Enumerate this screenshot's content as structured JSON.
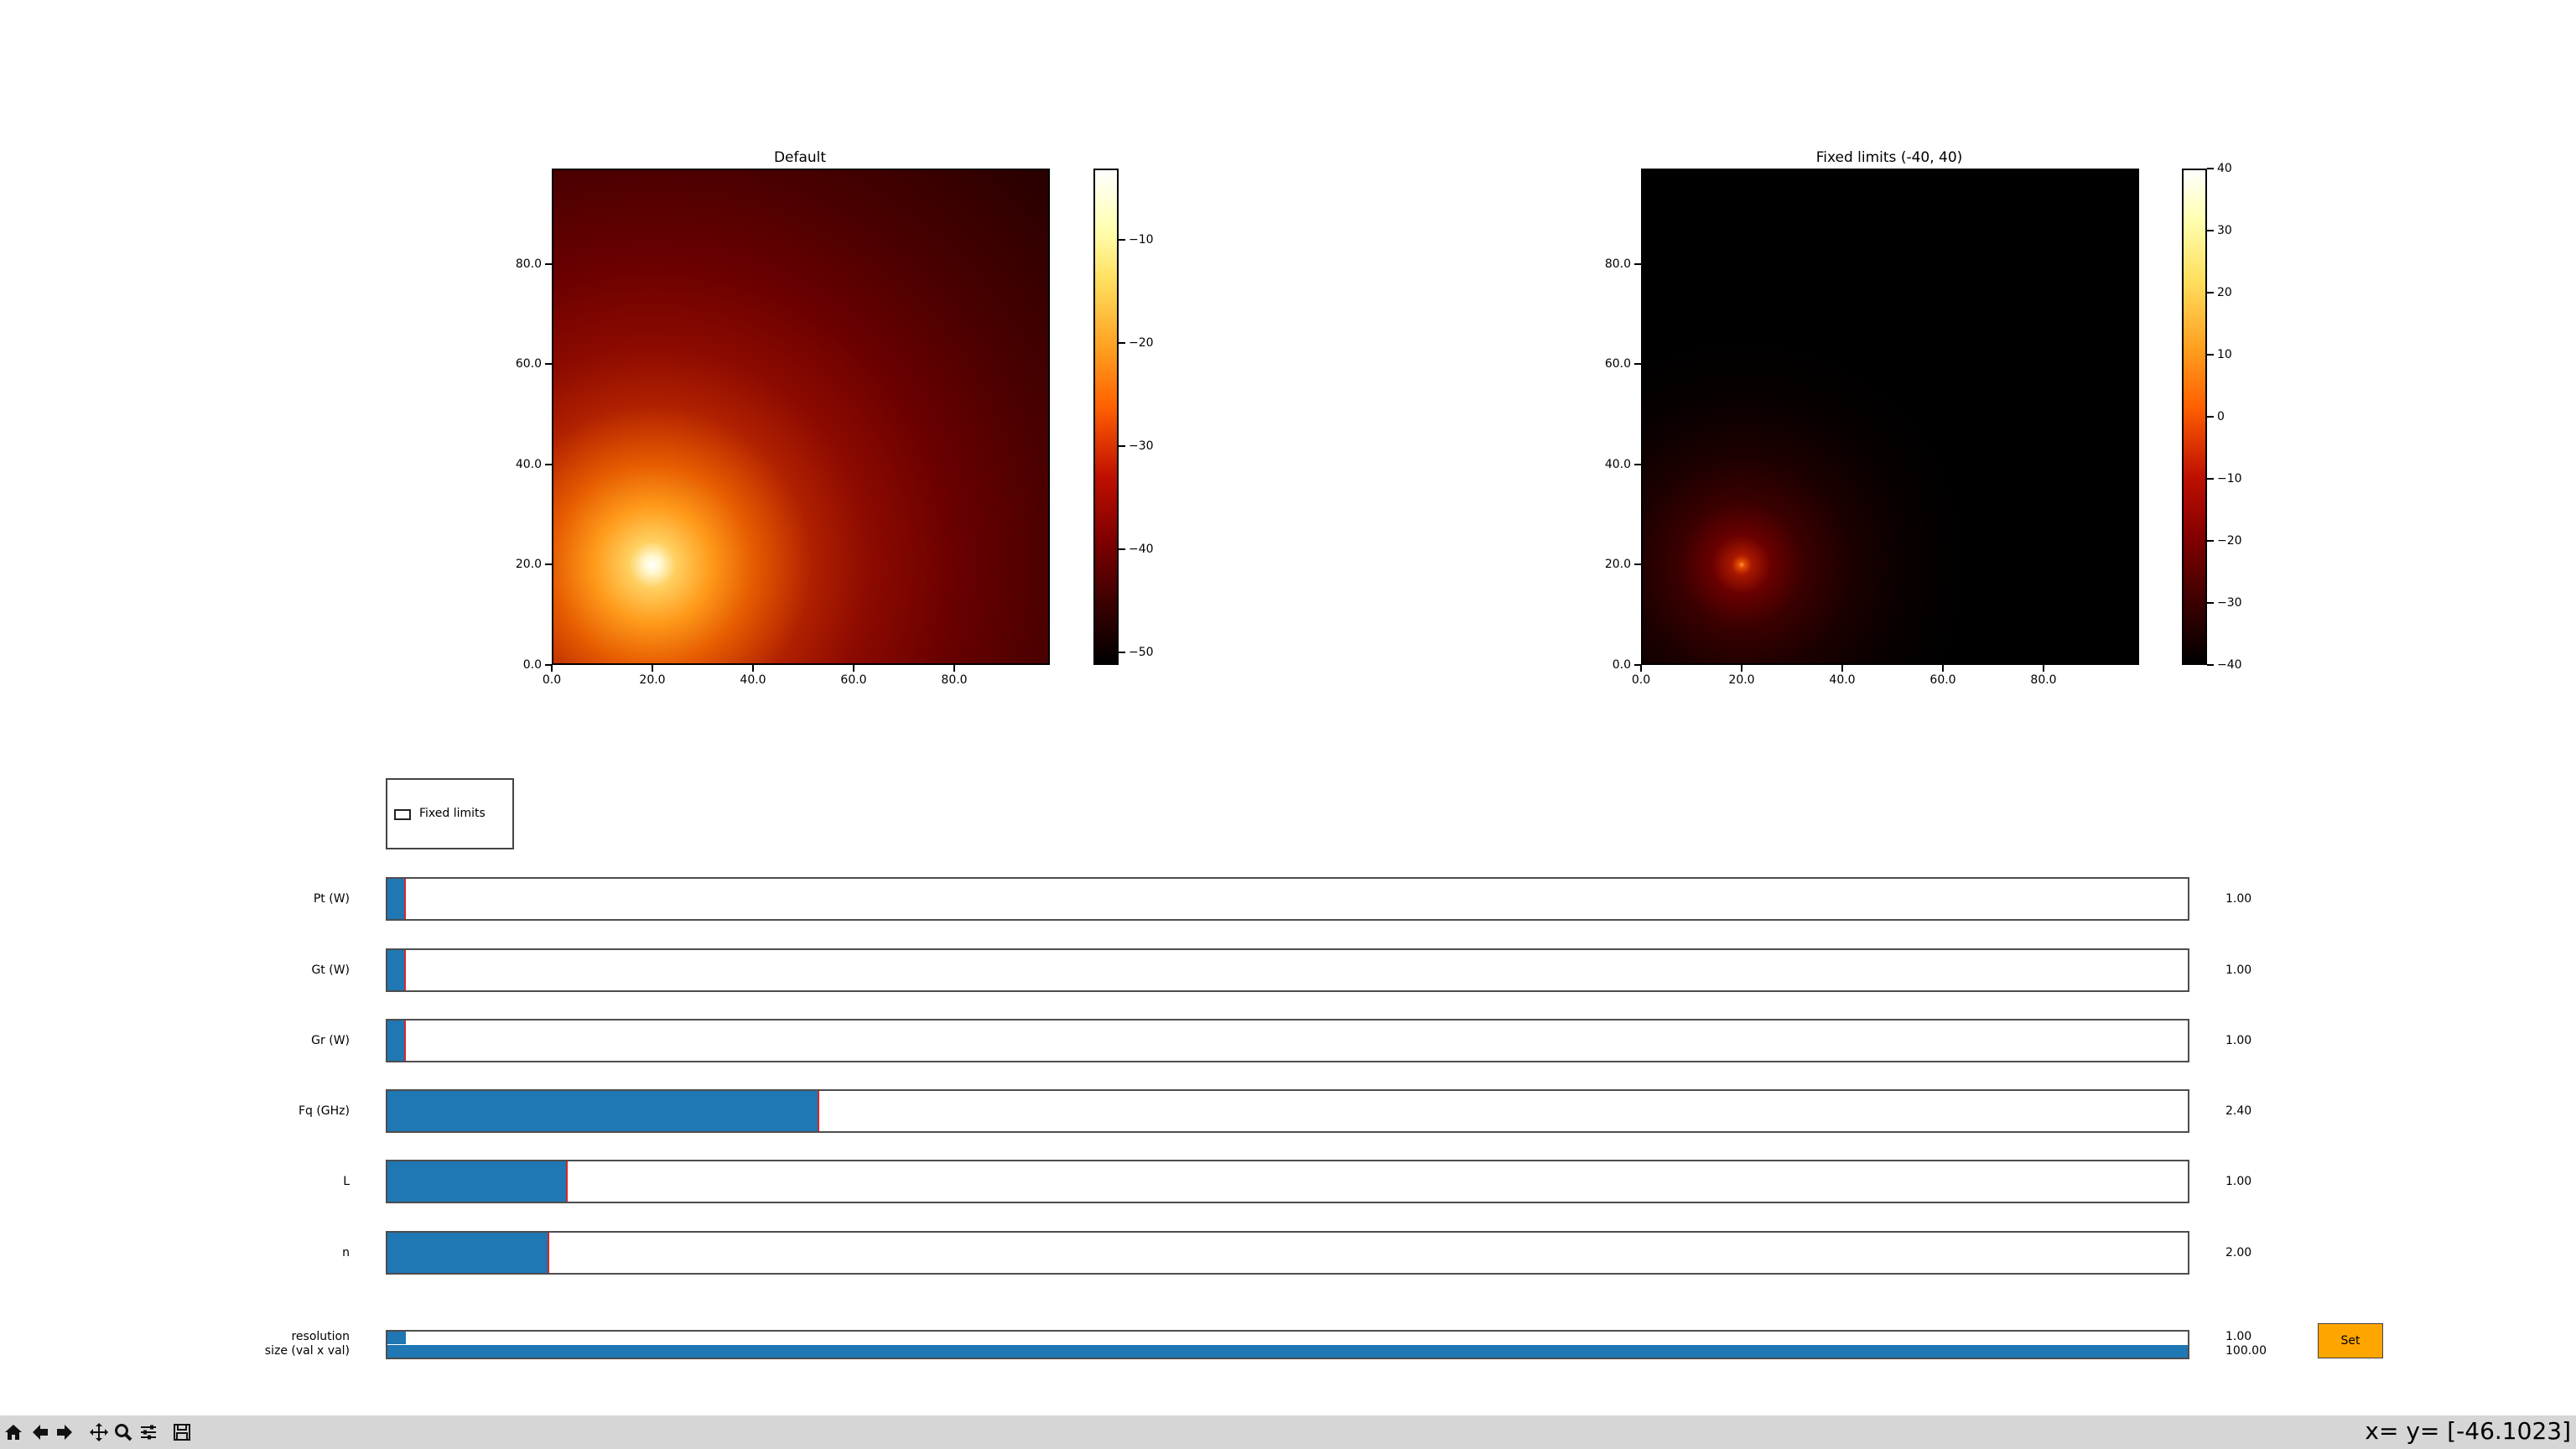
{
  "plots": [
    {
      "title": "Default",
      "xticks": [
        "0.0",
        "20.0",
        "40.0",
        "60.0",
        "80.0"
      ],
      "yticks": [
        "0.0",
        "20.0",
        "40.0",
        "60.0",
        "80.0"
      ],
      "colorbar_ticks": [
        "−10",
        "−20",
        "−30",
        "−40",
        "−50"
      ],
      "colormap": "afmhot"
    },
    {
      "title": "Fixed limits (-40, 40)",
      "xticks": [
        "0.0",
        "20.0",
        "40.0",
        "60.0",
        "80.0"
      ],
      "yticks": [
        "0.0",
        "20.0",
        "40.0",
        "60.0",
        "80.0"
      ],
      "colorbar_ticks": [
        "40",
        "30",
        "20",
        "10",
        "0",
        "−10",
        "−20",
        "−30",
        "−40"
      ],
      "colormap": "afmhot"
    }
  ],
  "checkbox": {
    "label": "Fixed limits",
    "checked": false
  },
  "sliders": [
    {
      "label": "Pt (W)",
      "value_text": "1.00",
      "fill": 0.01
    },
    {
      "label": "Gt (W)",
      "value_text": "1.00",
      "fill": 0.01
    },
    {
      "label": "Gr (W)",
      "value_text": "1.00",
      "fill": 0.01
    },
    {
      "label": "Fq (GHz)",
      "value_text": "2.40",
      "fill": 0.24
    },
    {
      "label": "L",
      "value_text": "1.00",
      "fill": 0.1
    },
    {
      "label": "n",
      "value_text": "2.00",
      "fill": 0.09
    }
  ],
  "resolution": {
    "label": "resolution",
    "value_text": "1.00",
    "fill": 0.01
  },
  "size": {
    "label": "size (val x val)",
    "value_text": "100.00",
    "fill": 1.0
  },
  "set_button": {
    "label": "Set",
    "color": "#ffa500"
  },
  "toolbar": {
    "icons": [
      "home-icon",
      "back-icon",
      "forward-icon",
      "pan-icon",
      "zoom-icon",
      "configure-icon",
      "save-icon"
    ],
    "coordinate_readout": "x= y= [-46.1023]"
  },
  "colors": {
    "slider_fill": "#1f77b4",
    "slider_edge": "#d62728",
    "toolbar_bg": "#d6d6d6"
  }
}
